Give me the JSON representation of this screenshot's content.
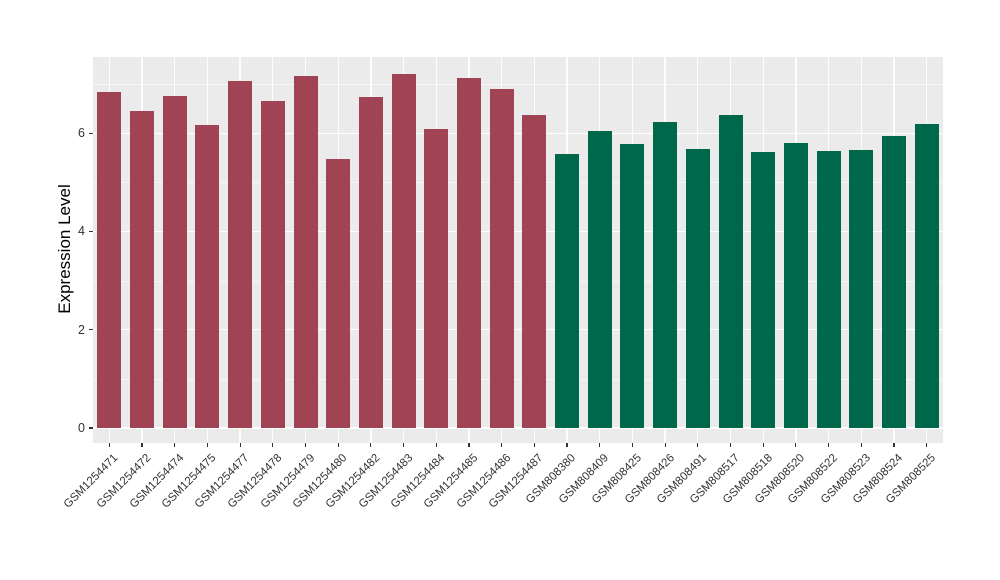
{
  "chart_data": {
    "type": "bar",
    "title": "",
    "ylabel": "Expression Level",
    "xlabel": "",
    "ylim": [
      0,
      7.6
    ],
    "yticks": [
      0,
      2,
      4,
      6
    ],
    "yminorticks": [
      1,
      3,
      5,
      7
    ],
    "grid": "white major and minor horizontal gridlines plus vertical gridlines at each category, on gray panel",
    "legend_position": "none",
    "categories": [
      "GSM1254471",
      "GSM1254472",
      "GSM1254474",
      "GSM1254475",
      "GSM1254477",
      "GSM1254478",
      "GSM1254479",
      "GSM1254480",
      "GSM1254482",
      "GSM1254483",
      "GSM1254484",
      "GSM1254485",
      "GSM1254486",
      "GSM1254487",
      "GSM808380",
      "GSM808409",
      "GSM808425",
      "GSM808426",
      "GSM808491",
      "GSM808517",
      "GSM808518",
      "GSM808520",
      "GSM808522",
      "GSM808523",
      "GSM808524",
      "GSM808525"
    ],
    "values": [
      6.83,
      6.45,
      6.76,
      6.17,
      7.07,
      6.66,
      7.17,
      5.47,
      6.74,
      7.21,
      6.09,
      7.12,
      6.9,
      6.36,
      5.58,
      6.04,
      5.77,
      6.22,
      5.67,
      6.37,
      5.62,
      5.81,
      5.64,
      5.66,
      5.94,
      6.19
    ],
    "bar_colors": [
      "#A04455",
      "#A04455",
      "#A04455",
      "#A04455",
      "#A04455",
      "#A04455",
      "#A04455",
      "#A04455",
      "#A04455",
      "#A04455",
      "#A04455",
      "#A04455",
      "#A04455",
      "#A04455",
      "#00684A",
      "#00684A",
      "#00684A",
      "#00684A",
      "#00684A",
      "#00684A",
      "#00684A",
      "#00684A",
      "#00684A",
      "#00684A",
      "#00684A",
      "#00684A"
    ],
    "group_colors": {
      "GSM1254xxx_group": "#A04455",
      "GSM808xxx_group": "#00684A"
    }
  },
  "colors": {
    "figure_background": "#FFFFFF",
    "panel_background": "#EBEBEB",
    "gridline": "#FFFFFF",
    "axis_text": "#333333",
    "axis_title": "#000000",
    "tick_mark": "#333333"
  }
}
